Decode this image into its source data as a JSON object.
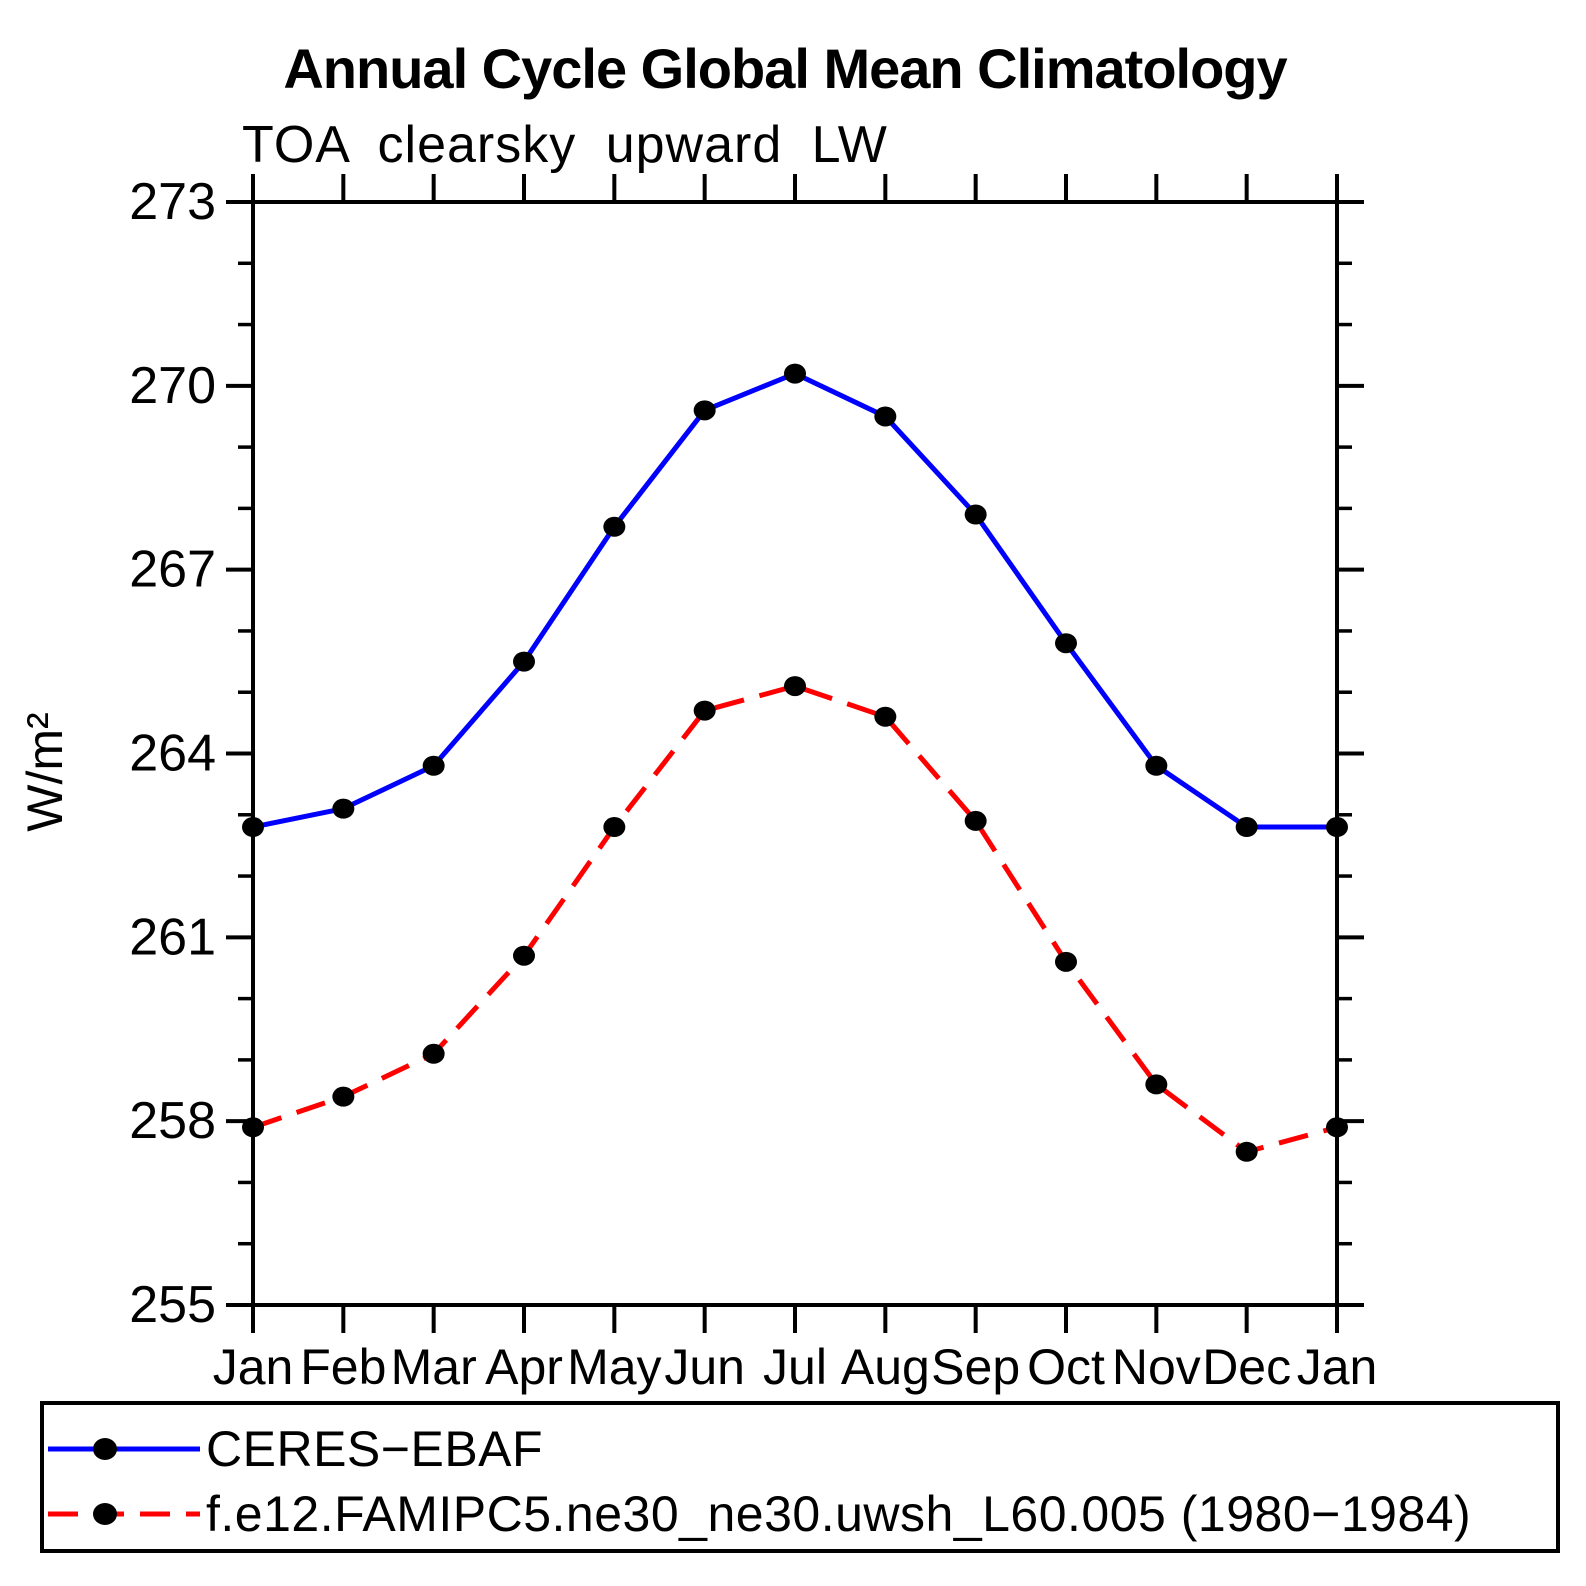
{
  "title": "Annual Cycle Global Mean Climatology",
  "subtitle": "TOA clearsky upward LW",
  "colors": {
    "observation_line": "#0000ff",
    "model_line": "#ff0000",
    "marker": "#000000",
    "axis": "#000000",
    "background": "#ffffff"
  },
  "chart_data": {
    "type": "line",
    "title": "Annual Cycle Global Mean Climatology",
    "subtitle": "TOA clearsky upward LW",
    "xlabel": "",
    "ylabel": "W/m²",
    "categories": [
      "Jan",
      "Feb",
      "Mar",
      "Apr",
      "May",
      "Jun",
      "Jul",
      "Aug",
      "Sep",
      "Oct",
      "Nov",
      "Dec",
      "Jan"
    ],
    "ylim": [
      255,
      273
    ],
    "yticks_major": [
      255,
      258,
      261,
      264,
      267,
      270,
      273
    ],
    "ytick_minor_step": 1,
    "grid": false,
    "legend_position": "bottom-box",
    "series": [
      {
        "name": "CERES−EBAF",
        "color": "#0000ff",
        "style": "solid",
        "marker": "dot",
        "marker_color": "#000000",
        "values": [
          262.8,
          263.1,
          263.8,
          265.5,
          267.7,
          269.6,
          270.2,
          269.5,
          267.9,
          265.8,
          263.8,
          262.8,
          262.8
        ]
      },
      {
        "name": "f.e12.FAMIPC5.ne30_ne30.uwsh_L60.005 (1980−1984)",
        "color": "#ff0000",
        "style": "dashed",
        "marker": "dot",
        "marker_color": "#000000",
        "values": [
          257.9,
          258.4,
          259.1,
          260.7,
          262.8,
          264.7,
          265.1,
          264.6,
          262.9,
          260.6,
          258.6,
          257.5,
          257.9
        ]
      }
    ]
  }
}
